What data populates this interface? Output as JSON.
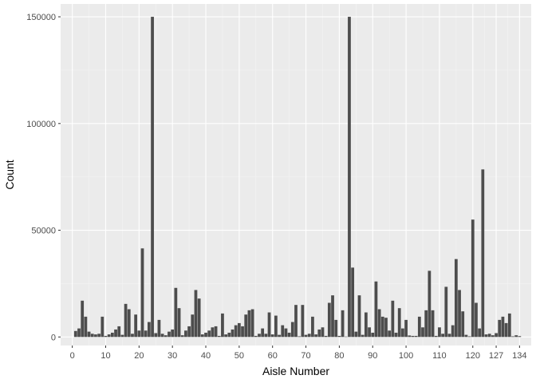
{
  "chart_data": {
    "type": "bar",
    "title": "",
    "xlabel": "Aisle Number",
    "ylabel": "Count",
    "xlim": [
      -3.5,
      137.5
    ],
    "ylim": [
      -4000,
      156000
    ],
    "x_ticks": [
      "0",
      "10",
      "20",
      "30",
      "40",
      "50",
      "60",
      "70",
      "80",
      "90",
      "100",
      "110",
      "120",
      "127",
      "134"
    ],
    "y_ticks": [
      "0",
      "50000",
      "100000",
      "150000"
    ],
    "grid": true,
    "legend": "none",
    "bar_color": "#4d4d4d",
    "panel_color": "#ebebeb",
    "x": [
      1,
      2,
      3,
      4,
      5,
      6,
      7,
      8,
      9,
      10,
      11,
      12,
      13,
      14,
      15,
      16,
      17,
      18,
      19,
      20,
      21,
      22,
      23,
      24,
      25,
      26,
      27,
      28,
      29,
      30,
      31,
      32,
      33,
      34,
      35,
      36,
      37,
      38,
      39,
      40,
      41,
      42,
      43,
      44,
      45,
      46,
      47,
      48,
      49,
      50,
      51,
      52,
      53,
      54,
      55,
      56,
      57,
      58,
      59,
      60,
      61,
      62,
      63,
      64,
      65,
      66,
      67,
      68,
      69,
      70,
      71,
      72,
      73,
      74,
      75,
      76,
      77,
      78,
      79,
      80,
      81,
      82,
      83,
      84,
      85,
      86,
      87,
      88,
      89,
      90,
      91,
      92,
      93,
      94,
      95,
      96,
      97,
      98,
      99,
      100,
      101,
      102,
      103,
      104,
      105,
      106,
      107,
      108,
      109,
      110,
      111,
      112,
      113,
      114,
      115,
      116,
      117,
      118,
      119,
      120,
      121,
      122,
      123,
      124,
      125,
      126,
      127,
      128,
      129,
      130,
      131,
      132,
      133,
      134
    ],
    "values": [
      2800,
      4000,
      17000,
      9500,
      2500,
      1500,
      1200,
      1500,
      9500,
      500,
      1200,
      2000,
      3500,
      5000,
      1000,
      15500,
      13000,
      1500,
      10500,
      3000,
      41500,
      3000,
      7000,
      150000,
      1800,
      8000,
      1500,
      800,
      2500,
      3500,
      23000,
      13500,
      800,
      3000,
      5000,
      10500,
      22000,
      18000,
      1200,
      2000,
      3000,
      4500,
      5000,
      500,
      11000,
      1200,
      2000,
      3500,
      5500,
      6500,
      5000,
      10500,
      12500,
      13000,
      500,
      1500,
      4000,
      1500,
      11500,
      1200,
      10000,
      1000,
      5500,
      4000,
      2000,
      7000,
      15000,
      300,
      15000,
      1000,
      1500,
      9500,
      1200,
      3500,
      4500,
      500,
      16000,
      19500,
      8000,
      500,
      12500,
      200,
      150000,
      32500,
      2500,
      19500,
      1000,
      11500,
      4500,
      2000,
      26000,
      13000,
      9500,
      9000,
      3000,
      17000,
      2000,
      13500,
      4000,
      8000,
      700,
      500,
      500,
      9500,
      4500,
      12500,
      31000,
      12500,
      500,
      4500,
      1500,
      23500,
      1500,
      5500,
      36500,
      22000,
      12000,
      1000,
      300,
      55000,
      16000,
      4000,
      78500,
      1200,
      1500,
      800,
      1800,
      8000,
      9500,
      6500,
      11000,
      300,
      800,
      400
    ],
    "y_unit": "count"
  }
}
